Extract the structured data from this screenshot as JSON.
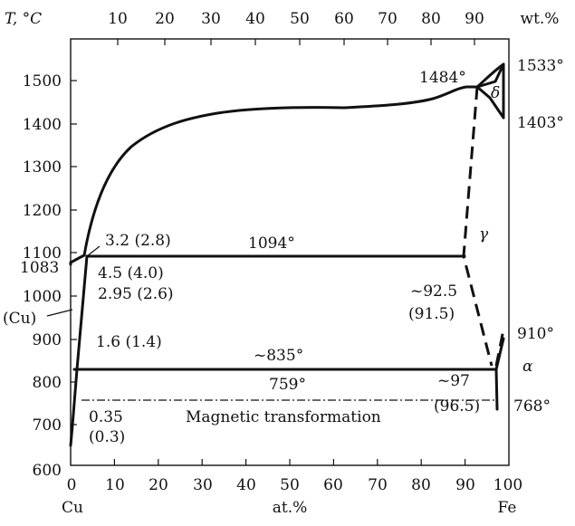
{
  "figure": {
    "bottom_axis": {
      "ticks": [
        "0",
        "10",
        "20",
        "30",
        "40",
        "50",
        "60",
        "70",
        "80",
        "90",
        "100"
      ],
      "label": "at.%",
      "left_element": "Cu",
      "right_element": "Fe"
    },
    "top_axis": {
      "label": "T, °C",
      "ticks": [
        "10",
        "20",
        "30",
        "40",
        "50",
        "60",
        "70",
        "80",
        "90"
      ],
      "unit": "wt.%"
    },
    "left_axis": {
      "ticks": [
        "600",
        "700",
        "800",
        "900",
        "1000",
        "1100",
        "1200",
        "1300",
        "1400",
        "1500"
      ]
    },
    "annotations": {
      "t1533": "1533°",
      "t1484": "1484°",
      "delta": "δ",
      "t1403": "1403°",
      "gamma": "γ",
      "t1094": "1094°",
      "c32": "3.2 (2.8)",
      "t1083": "1083",
      "c45": "4.5 (4.0)",
      "c295": "2.95 (2.6)",
      "cu_phase": "(Cu)",
      "c925": "~92.5",
      "c915": "(91.5)",
      "c16": "1.6 (1.4)",
      "t835": "~835°",
      "t910": "910°",
      "alpha": "α",
      "t759": "759°",
      "c97": "~97",
      "c965": "(96.5)",
      "t768": "768°",
      "c035": "0.35",
      "c03": "(0.3)",
      "magnetic": "Magnetic transformation"
    }
  }
}
